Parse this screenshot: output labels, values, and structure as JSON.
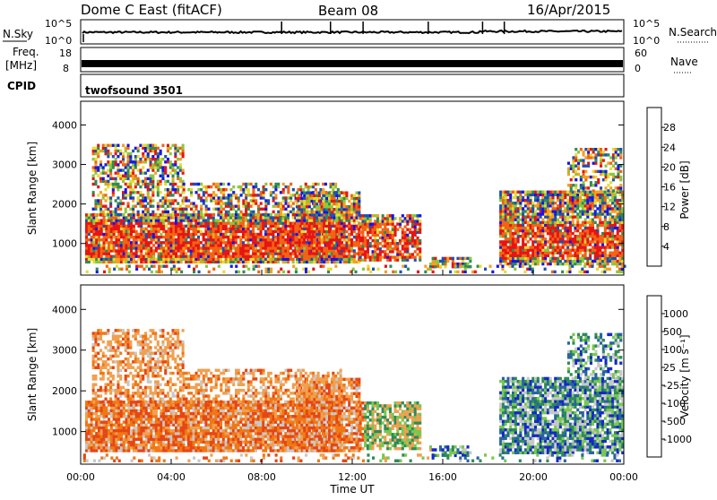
{
  "header": {
    "station": "Dome C East (fitACF)",
    "beam": "Beam 08",
    "date": "16/Apr/2015"
  },
  "summary": {
    "nsky_label": "N.Sky",
    "nsky_ticks": [
      "10^5",
      "10^0"
    ],
    "nsearch_label": "N.Search",
    "nsearch_ticks": [
      "10^5",
      "10^0"
    ],
    "freq_label_1": "Freq.",
    "freq_label_2": "[MHz]",
    "freq_ticks": [
      "18",
      "8"
    ],
    "nave_label": "Nave",
    "nave_ticks": [
      "60",
      "0"
    ],
    "cpid_label": "CPID",
    "cpid_value": "twofsound 3501"
  },
  "chart_data": [
    {
      "type": "heatmap",
      "panel": "power",
      "ylabel": "Slant Range [km]",
      "ylim": [
        200,
        4600
      ],
      "yticks": [
        1000,
        2000,
        3000,
        4000
      ],
      "xlim": [
        0,
        24
      ],
      "colorbar_label": "Power [dB]",
      "colorbar_ticks": [
        "28",
        "24",
        "20",
        "16",
        "12",
        "8",
        "4"
      ],
      "colorscale": [
        "#1414f0",
        "#1e50b4",
        "#2e8b57",
        "#8cc83c",
        "#e6dc32",
        "#f5a020",
        "#f06414",
        "#e61414"
      ]
    },
    {
      "type": "heatmap",
      "panel": "velocity",
      "ylabel": "Slant Range [km]",
      "ylim": [
        200,
        4600
      ],
      "yticks": [
        1000,
        2000,
        3000,
        4000
      ],
      "xlim": [
        0,
        24
      ],
      "xlabel": "Time UT",
      "xticks": [
        "00:00",
        "04:00",
        "08:00",
        "12:00",
        "16:00",
        "20:00",
        "00:00"
      ],
      "colorbar_label": "Velocity [m s⁻¹]",
      "colorbar_ticks": [
        "1000",
        "500",
        "100",
        "25",
        "-25",
        "-100",
        "-500",
        "-1000"
      ],
      "colorscale": [
        "#1428c8",
        "#2864a0",
        "#2e8b57",
        "#78c850",
        "#c8c8c8",
        "#f0a050",
        "#f07814",
        "#e64614",
        "#e61414"
      ]
    }
  ]
}
